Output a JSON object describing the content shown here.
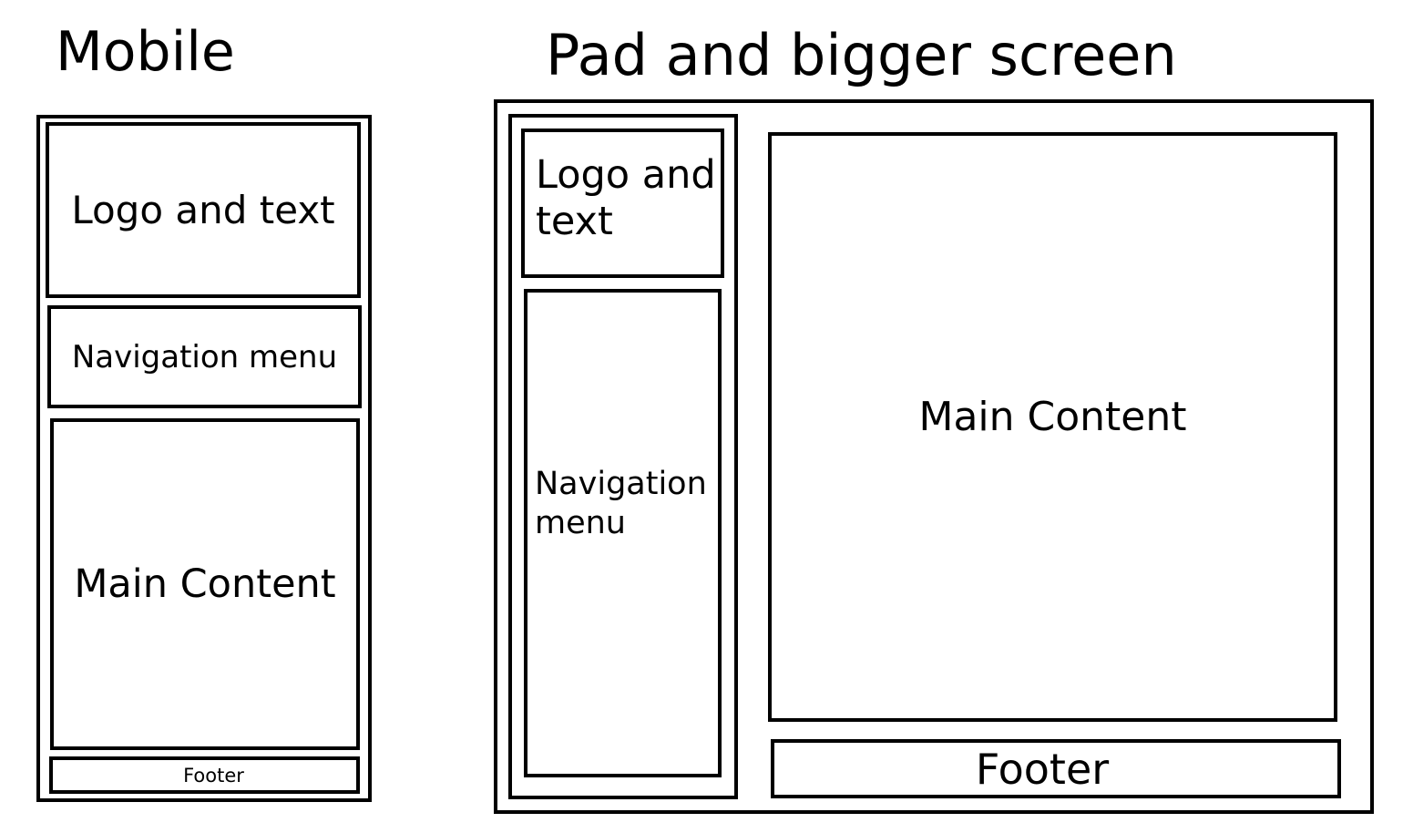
{
  "mobile": {
    "title": "Mobile",
    "header_label": "Logo and text",
    "nav_label": "Navigation menu",
    "main_label": "Main Content",
    "footer_label": "Footer"
  },
  "desktop": {
    "title": "Pad and bigger screen",
    "header_label": "Logo and\n text",
    "nav_label": "Navigation\nmenu",
    "main_label": "Main Content",
    "footer_label": "Footer"
  }
}
